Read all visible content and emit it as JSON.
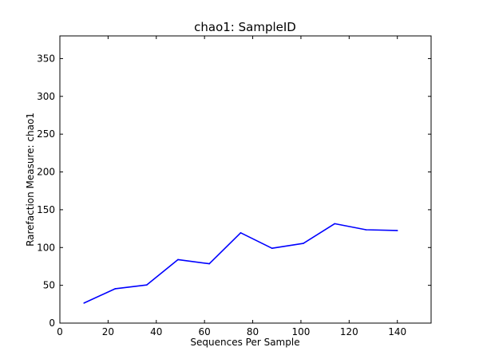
{
  "chart_data": {
    "type": "line",
    "title": "chao1: SampleID",
    "xlabel": "Sequences Per Sample",
    "ylabel": "Rarefaction Measure: chao1",
    "xlim": [
      0,
      154
    ],
    "ylim": [
      0,
      380
    ],
    "xticks": [
      0,
      20,
      40,
      60,
      80,
      100,
      120,
      140
    ],
    "yticks": [
      0,
      50,
      100,
      150,
      200,
      250,
      300,
      350
    ],
    "grid": false,
    "series": [
      {
        "color": "#0000ff",
        "x": [
          10,
          23,
          36,
          49,
          62,
          75,
          88,
          101,
          114,
          127,
          140
        ],
        "y": [
          26.5,
          45.5,
          50.5,
          84,
          78.5,
          119.5,
          99,
          105.5,
          131.5,
          123.5,
          122.5
        ]
      }
    ]
  }
}
